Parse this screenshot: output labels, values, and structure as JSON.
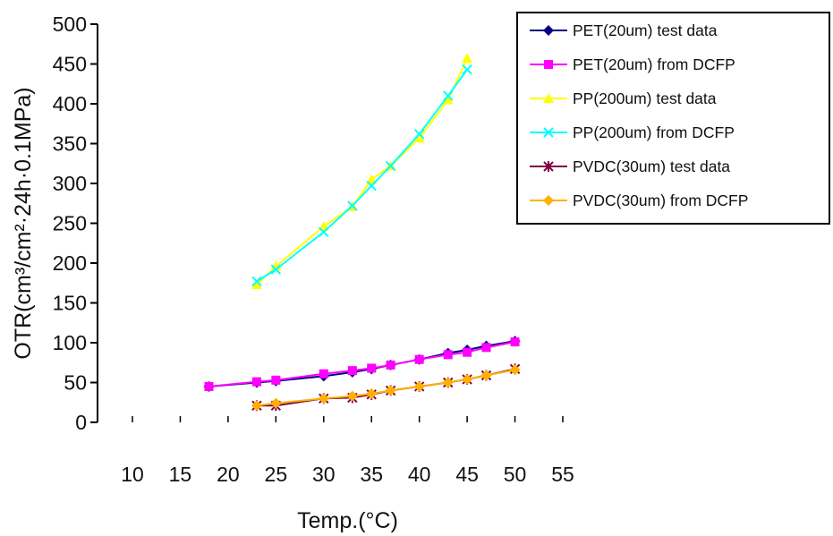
{
  "chart_data": {
    "type": "line",
    "title": "",
    "xlabel": "Temp.(°C)",
    "ylabel": "OTR(cm³/cm²·24h·0.1MPa)",
    "xlim": [
      10,
      55
    ],
    "ylim": [
      0,
      500
    ],
    "x_ticks": [
      10,
      15,
      20,
      25,
      30,
      35,
      40,
      45,
      50,
      55
    ],
    "y_ticks": [
      0,
      50,
      100,
      150,
      200,
      250,
      300,
      350,
      400,
      450,
      500
    ],
    "grid": false,
    "legend_position": "top-right",
    "series": [
      {
        "name": "PET(20um) test data",
        "color": "#000080",
        "marker": "diamond",
        "x": [
          18,
          23,
          25,
          30,
          33,
          35,
          37,
          40,
          43,
          45,
          47,
          50
        ],
        "y": [
          45,
          50,
          52,
          58,
          63,
          67,
          72,
          79,
          87,
          91,
          96,
          102
        ]
      },
      {
        "name": "PET(20um) from DCFP",
        "color": "#FF00FF",
        "marker": "square",
        "x": [
          18,
          23,
          25,
          30,
          33,
          35,
          37,
          40,
          43,
          45,
          47,
          50
        ],
        "y": [
          45,
          51,
          53,
          61,
          65,
          68,
          72,
          79,
          85,
          88,
          94,
          101
        ]
      },
      {
        "name": "PP(200um) test data",
        "color": "#FFFF00",
        "marker": "triangle",
        "x": [
          23,
          25,
          30,
          33,
          35,
          37,
          40,
          43,
          45
        ],
        "y": [
          173,
          196,
          246,
          271,
          305,
          322,
          357,
          405,
          457
        ]
      },
      {
        "name": "PP(200um) from DCFP",
        "color": "#00FFFF",
        "marker": "x",
        "x": [
          23,
          25,
          30,
          33,
          35,
          37,
          40,
          43,
          45
        ],
        "y": [
          177,
          192,
          239,
          272,
          297,
          322,
          362,
          410,
          443
        ]
      },
      {
        "name": "PVDC(30um) test data",
        "color": "#800040",
        "marker": "star",
        "x": [
          23,
          25,
          30,
          33,
          35,
          37,
          40,
          43,
          45,
          47,
          50
        ],
        "y": [
          21,
          21,
          30,
          31,
          35,
          40,
          45,
          50,
          54,
          59,
          67
        ]
      },
      {
        "name": "PVDC(30um) from DCFP",
        "color": "#FFB000",
        "marker": "diamond",
        "x": [
          23,
          25,
          30,
          33,
          35,
          37,
          40,
          43,
          45,
          47,
          50
        ],
        "y": [
          21,
          24,
          30,
          33,
          36,
          40,
          45,
          50,
          54,
          59,
          66
        ]
      }
    ]
  }
}
